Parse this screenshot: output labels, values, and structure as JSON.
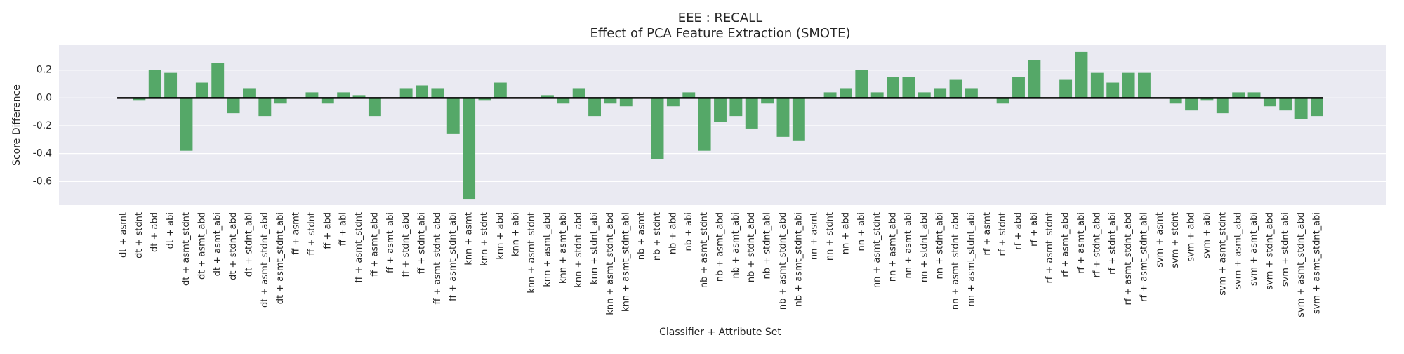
{
  "chart_data": {
    "type": "bar",
    "title": "EEE : RECALL",
    "subtitle": "Effect of PCA Feature Extraction (SMOTE)",
    "x_label": "Classifier + Attribute Set",
    "y_label": "Score Difference",
    "color": "#55a868",
    "grid": true,
    "categories": [
      "dt + asmt",
      "dt + stdnt",
      "dt + abd",
      "dt + abi",
      "dt + asmt_stdnt",
      "dt + asmt_abd",
      "dt + asmt_abi",
      "dt + stdnt_abd",
      "dt + stdnt_abi",
      "dt + asmt_stdnt_abd",
      "dt + asmt_stdnt_abi",
      "ff + asmt",
      "ff + stdnt",
      "ff + abd",
      "ff + abi",
      "ff + asmt_stdnt",
      "ff + asmt_abd",
      "ff + asmt_abi",
      "ff + stdnt_abd",
      "ff + stdnt_abi",
      "ff + asmt_stdnt_abd",
      "ff + asmt_stdnt_abi",
      "knn + asmt",
      "knn + stdnt",
      "knn + abd",
      "knn + abi",
      "knn + asmt_stdnt",
      "knn + asmt_abd",
      "knn + asmt_abi",
      "knn + stdnt_abd",
      "knn + stdnt_abi",
      "knn + asmt_stdnt_abd",
      "knn + asmt_stdnt_abi",
      "nb + asmt",
      "nb + stdnt",
      "nb + abd",
      "nb + abi",
      "nb + asmt_stdnt",
      "nb + asmt_abd",
      "nb + asmt_abi",
      "nb + stdnt_abd",
      "nb + stdnt_abi",
      "nb + asmt_stdnt_abd",
      "nb + asmt_stdnt_abi",
      "nn + asmt",
      "nn + stdnt",
      "nn + abd",
      "nn + abi",
      "nn + asmt_stdnt",
      "nn + asmt_abd",
      "nn + asmt_abi",
      "nn + stdnt_abd",
      "nn + stdnt_abi",
      "nn + asmt_stdnt_abd",
      "nn + asmt_stdnt_abi",
      "rf + asmt",
      "rf + stdnt",
      "rf + abd",
      "rf + abi",
      "rf + asmt_stdnt",
      "rf + asmt_abd",
      "rf + asmt_abi",
      "rf + stdnt_abd",
      "rf + stdnt_abi",
      "rf + asmt_stdnt_abd",
      "rf + asmt_stdnt_abi",
      "svm + asmt",
      "svm + stdnt",
      "svm + abd",
      "svm + abi",
      "svm + asmt_stdnt",
      "svm + asmt_abd",
      "svm + asmt_abi",
      "svm + stdnt_abd",
      "svm + stdnt_abi",
      "svm + asmt_stdnt_abd",
      "svm + asmt_stdnt_abi"
    ],
    "values": [
      0,
      -0.02,
      0.2,
      0.18,
      -0.38,
      0.11,
      0.25,
      -0.11,
      0.07,
      -0.13,
      -0.04,
      0,
      0.04,
      -0.04,
      0.04,
      0.02,
      -0.13,
      0,
      0.07,
      0.09,
      0.07,
      -0.26,
      -0.73,
      -0.02,
      0.11,
      0,
      0,
      0.02,
      -0.04,
      0.07,
      -0.13,
      -0.04,
      -0.06,
      0,
      -0.44,
      -0.06,
      0.04,
      -0.38,
      -0.17,
      -0.13,
      -0.22,
      -0.04,
      -0.28,
      -0.31,
      0,
      0.04,
      0.07,
      0.2,
      0.04,
      0.15,
      0.15,
      0.04,
      0.07,
      0.13,
      0.07,
      0,
      -0.04,
      0.15,
      0.27,
      0,
      0.13,
      0.33,
      0.18,
      0.11,
      0.18,
      0.18,
      0,
      -0.04,
      -0.09,
      -0.02,
      -0.11,
      0.04,
      0.04,
      -0.06,
      -0.09,
      -0.15,
      -0.13
    ],
    "ylim": [
      -0.77,
      0.38
    ],
    "yticks": [
      -0.6,
      -0.4,
      -0.2,
      {
        "value": 0,
        "label": "0.0"
      },
      0.2
    ]
  }
}
